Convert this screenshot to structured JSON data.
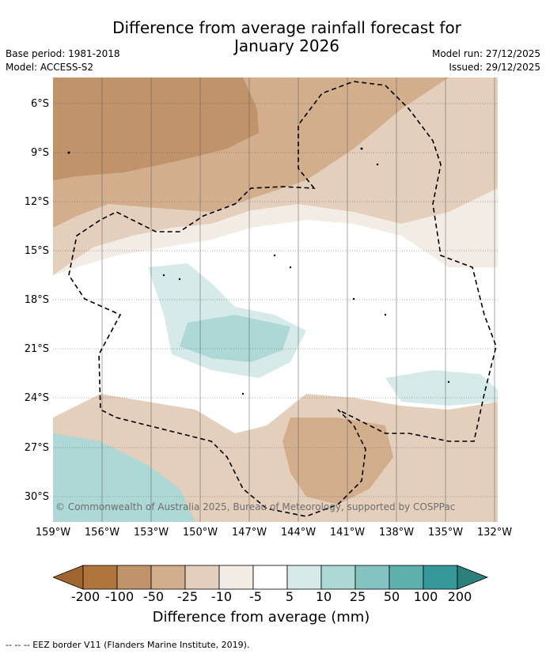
{
  "title": "Difference from average rainfall forecast for January 2026",
  "title_line1": "Difference from average rainfall forecast for",
  "title_line2": "January 2026",
  "base_period": "Base period: 1981-2018",
  "model": "Model: ACCESS-S2",
  "model_run": "Model run: 27/12/2025",
  "issued": "Issued: 29/12/2025",
  "y_axis_labels": [
    "6°S",
    "9°S",
    "12°S",
    "15°S",
    "18°S",
    "21°S",
    "24°S",
    "27°S",
    "30°S"
  ],
  "x_axis_labels": [
    "159°W",
    "156°W",
    "153°W",
    "150°W",
    "147°W",
    "144°W",
    "141°W",
    "138°W",
    "135°W",
    "132°W"
  ],
  "copyright": "© Commonwealth of Australia 2025, Bureau of Meteorology, supported by COSPPac",
  "colorbar": {
    "ticks": [
      "-200",
      "-100",
      "-50",
      "-25",
      "-10",
      "-5",
      "5",
      "10",
      "25",
      "50",
      "100",
      "200"
    ],
    "colors": [
      "#a0662f",
      "#b0753c",
      "#c0936a",
      "#d2ae8c",
      "#e4cfbc",
      "#f3ece4",
      "#ffffff",
      "#d6ebe9",
      "#add8d6",
      "#85c3c1",
      "#5eb0ad",
      "#35999a",
      "#2c7f7d"
    ],
    "title": "Difference from average (mm)"
  },
  "footnote": "-- -- -- EEZ border V11 (Flanders Marine Institute, 2019)."
}
